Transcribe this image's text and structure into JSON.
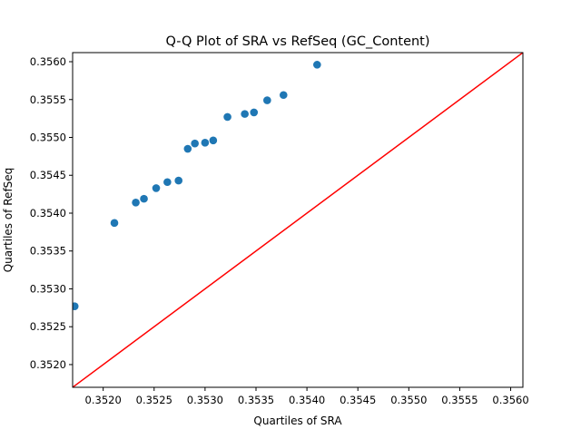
{
  "chart_data": {
    "type": "scatter",
    "title": "Q-Q Plot of SRA vs RefSeq (GC_Content)",
    "xlabel": "Quartiles of SRA",
    "ylabel": "Quartiles of RefSeq",
    "xlim": [
      0.3517,
      0.35612
    ],
    "ylim": [
      0.3517,
      0.35612
    ],
    "xticks": [
      {
        "value": 0.352,
        "label": "0.3520"
      },
      {
        "value": 0.3525,
        "label": "0.3525"
      },
      {
        "value": 0.353,
        "label": "0.3530"
      },
      {
        "value": 0.3535,
        "label": "0.3535"
      },
      {
        "value": 0.354,
        "label": "0.3540"
      },
      {
        "value": 0.3545,
        "label": "0.3545"
      },
      {
        "value": 0.355,
        "label": "0.3550"
      },
      {
        "value": 0.3555,
        "label": "0.3555"
      },
      {
        "value": 0.356,
        "label": "0.3560"
      }
    ],
    "yticks": [
      {
        "value": 0.352,
        "label": "0.3520"
      },
      {
        "value": 0.3525,
        "label": "0.3525"
      },
      {
        "value": 0.353,
        "label": "0.3530"
      },
      {
        "value": 0.3535,
        "label": "0.3535"
      },
      {
        "value": 0.354,
        "label": "0.3540"
      },
      {
        "value": 0.3545,
        "label": "0.3545"
      },
      {
        "value": 0.355,
        "label": "0.3550"
      },
      {
        "value": 0.3555,
        "label": "0.3555"
      },
      {
        "value": 0.356,
        "label": "0.3560"
      }
    ],
    "grid": false,
    "points": [
      {
        "x": 0.35172,
        "y": 0.35277
      },
      {
        "x": 0.35211,
        "y": 0.35387
      },
      {
        "x": 0.35232,
        "y": 0.35414
      },
      {
        "x": 0.3524,
        "y": 0.35419
      },
      {
        "x": 0.35252,
        "y": 0.35433
      },
      {
        "x": 0.35263,
        "y": 0.35441
      },
      {
        "x": 0.35274,
        "y": 0.35443
      },
      {
        "x": 0.35283,
        "y": 0.35485
      },
      {
        "x": 0.3529,
        "y": 0.35492
      },
      {
        "x": 0.353,
        "y": 0.35493
      },
      {
        "x": 0.35308,
        "y": 0.35496
      },
      {
        "x": 0.35322,
        "y": 0.35527
      },
      {
        "x": 0.35339,
        "y": 0.35531
      },
      {
        "x": 0.35348,
        "y": 0.35533
      },
      {
        "x": 0.35361,
        "y": 0.35549
      },
      {
        "x": 0.35377,
        "y": 0.35556
      },
      {
        "x": 0.3541,
        "y": 0.35596
      }
    ],
    "reference_line": {
      "from": [
        0.3517,
        0.3517
      ],
      "to": [
        0.35612,
        0.35612
      ]
    },
    "colors": {
      "points": "#1f77b4",
      "reference_line": "#ff0000"
    }
  }
}
